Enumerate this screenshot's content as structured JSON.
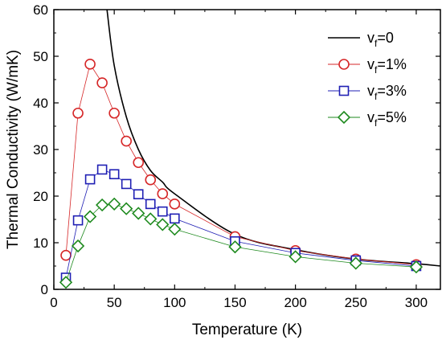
{
  "chart_data": {
    "type": "line",
    "xlabel": "Temperature (K)",
    "ylabel": "Thermal Conductivity (W/mK)",
    "xlim": [
      0,
      320
    ],
    "ylim": [
      0,
      60
    ],
    "xticks": [
      0,
      50,
      100,
      150,
      200,
      250,
      300
    ],
    "yticks": [
      0,
      10,
      20,
      30,
      40,
      50,
      60
    ],
    "grid": false,
    "legend_position": "top-right",
    "series": [
      {
        "name": "vf=0",
        "legend_main": "v",
        "legend_sub": "f",
        "legend_suffix": "=0",
        "color": "#000000",
        "marker": "none",
        "x": [
          44,
          50,
          60,
          70,
          80,
          90,
          100,
          150,
          200,
          250,
          300,
          320
        ],
        "y": [
          60,
          48,
          37,
          30,
          25.5,
          23,
          20.5,
          11.8,
          8.5,
          6.5,
          5.5,
          5
        ]
      },
      {
        "name": "vf=1%",
        "legend_main": "v",
        "legend_sub": "f",
        "legend_suffix": "=1%",
        "color": "#d62728",
        "marker": "circle",
        "x": [
          10,
          20,
          30,
          40,
          50,
          60,
          70,
          80,
          90,
          100,
          150,
          200,
          250,
          300
        ],
        "y": [
          7.3,
          37.8,
          48.3,
          44.3,
          37.8,
          31.8,
          27.2,
          23.5,
          20.5,
          18.3,
          11.3,
          8.3,
          6.5,
          5.3
        ]
      },
      {
        "name": "vf=3%",
        "legend_main": "v",
        "legend_sub": "f",
        "legend_suffix": "=3%",
        "color": "#1f1fb4",
        "marker": "square",
        "x": [
          10,
          20,
          30,
          40,
          50,
          60,
          70,
          80,
          90,
          100,
          150,
          200,
          250,
          300
        ],
        "y": [
          2.5,
          14.8,
          23.6,
          25.7,
          24.7,
          22.6,
          20.4,
          18.3,
          16.7,
          15.2,
          10.3,
          7.8,
          6.2,
          5
        ]
      },
      {
        "name": "vf=5%",
        "legend_main": "v",
        "legend_sub": "f",
        "legend_suffix": "=5%",
        "color": "#1e8a1e",
        "marker": "diamond",
        "x": [
          10,
          20,
          30,
          40,
          50,
          60,
          70,
          80,
          90,
          100,
          150,
          200,
          250,
          300
        ],
        "y": [
          1.5,
          9.3,
          15.6,
          18.1,
          18.3,
          17.3,
          16.3,
          15.1,
          13.9,
          12.9,
          9.1,
          7,
          5.6,
          4.8
        ]
      }
    ]
  }
}
